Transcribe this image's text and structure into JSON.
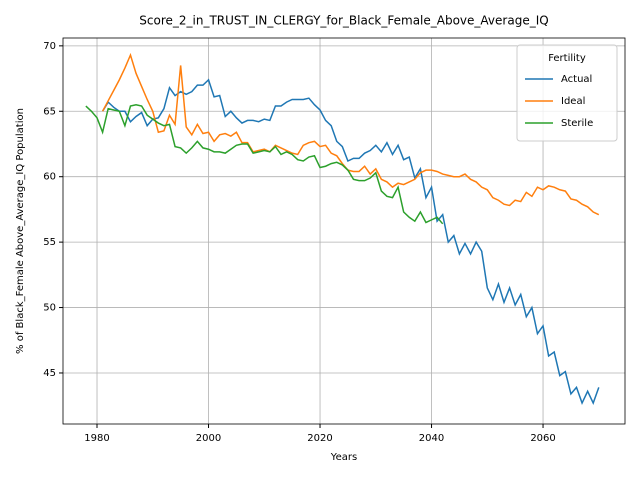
{
  "chart_data": {
    "type": "line",
    "title": "Score_2_in_TRUST_IN_CLERGY_for_Black_Female_Above_Average_IQ",
    "xlabel": "Years",
    "ylabel": "% of Black_Female Above_Average_IQ Population",
    "x": [
      1978,
      1979,
      1980,
      1981,
      1982,
      1983,
      1984,
      1985,
      1986,
      1987,
      1988,
      1989,
      1990,
      1991,
      1992,
      1993,
      1994,
      1995,
      1996,
      1997,
      1998,
      1999,
      2000,
      2001,
      2002,
      2003,
      2004,
      2005,
      2006,
      2007,
      2008,
      2009,
      2010,
      2011,
      2012,
      2013,
      2014,
      2015,
      2016,
      2017,
      2018,
      2019,
      2020,
      2021,
      2022,
      2023,
      2024,
      2025,
      2026,
      2027,
      2028,
      2029,
      2030,
      2031,
      2032,
      2033,
      2034,
      2035,
      2036,
      2037,
      2038,
      2039,
      2040,
      2041,
      2042,
      2043,
      2044,
      2045,
      2046,
      2047,
      2048,
      2049,
      2050,
      2051,
      2052,
      2053,
      2054,
      2055,
      2056,
      2057,
      2058,
      2059,
      2060,
      2061,
      2062,
      2063,
      2064,
      2065,
      2066,
      2067,
      2068,
      2069,
      2070
    ],
    "series": [
      {
        "name": "Actual",
        "color": "#1f77b4",
        "values": [
          null,
          null,
          null,
          65.0,
          65.7,
          65.3,
          65.0,
          65.0,
          64.2,
          64.6,
          64.9,
          63.9,
          64.4,
          64.5,
          65.2,
          66.8,
          66.2,
          66.5,
          66.3,
          66.5,
          67.0,
          67.0,
          67.4,
          66.1,
          66.2,
          64.6,
          65.0,
          64.5,
          64.1,
          64.3,
          64.3,
          64.2,
          64.4,
          64.3,
          65.4,
          65.4,
          65.7,
          65.9,
          65.9,
          65.9,
          66.0,
          65.5,
          65.1,
          64.3,
          63.9,
          62.7,
          62.3,
          61.2,
          61.4,
          61.4,
          61.8,
          62.0,
          62.4,
          61.9,
          62.6,
          61.7,
          62.4,
          61.3,
          61.5,
          59.9,
          60.6,
          58.4,
          59.2,
          56.6,
          57.1,
          55.0,
          55.5,
          54.1,
          54.9,
          54.1,
          55.0,
          54.3,
          51.5,
          50.6,
          51.8,
          50.4,
          51.5,
          50.2,
          51.0,
          49.3,
          50.0,
          48.0,
          48.6,
          46.3,
          46.6,
          44.8,
          45.1,
          43.4,
          43.9,
          42.7,
          43.6,
          42.7,
          43.9
        ]
      },
      {
        "name": "Ideal",
        "color": "#ff7f0e",
        "values": [
          null,
          null,
          null,
          65.0,
          65.8,
          66.6,
          67.4,
          68.3,
          69.3,
          67.9,
          66.9,
          65.9,
          65.0,
          63.4,
          63.5,
          64.7,
          64.0,
          68.5,
          63.8,
          63.2,
          64.0,
          63.3,
          63.4,
          62.7,
          63.2,
          63.3,
          63.1,
          63.4,
          62.6,
          62.6,
          61.9,
          62.0,
          62.1,
          61.9,
          62.4,
          62.2,
          62.0,
          61.8,
          61.7,
          62.4,
          62.6,
          62.7,
          62.3,
          62.4,
          61.8,
          61.6,
          61.0,
          60.5,
          60.4,
          60.4,
          60.8,
          60.2,
          60.6,
          59.8,
          59.6,
          59.2,
          59.5,
          59.4,
          59.6,
          59.8,
          60.3,
          60.5,
          60.5,
          60.4,
          60.2,
          60.1,
          60.0,
          60.0,
          60.2,
          59.8,
          59.6,
          59.2,
          59.0,
          58.4,
          58.2,
          57.9,
          57.8,
          58.2,
          58.1,
          58.8,
          58.5,
          59.2,
          59.0,
          59.3,
          59.2,
          59.0,
          58.9,
          58.3,
          58.2,
          57.9,
          57.7,
          57.3,
          57.1
        ]
      },
      {
        "name": "Sterile",
        "color": "#2ca02c",
        "values": [
          65.4,
          65.0,
          64.5,
          63.4,
          65.2,
          65.1,
          65.0,
          63.9,
          65.4,
          65.5,
          65.4,
          64.7,
          64.4,
          64.1,
          63.9,
          64.0,
          62.3,
          62.2,
          61.8,
          62.2,
          62.7,
          62.2,
          62.1,
          61.9,
          61.9,
          61.8,
          62.1,
          62.4,
          62.5,
          62.5,
          61.8,
          61.9,
          62.0,
          61.9,
          62.3,
          61.7,
          61.9,
          61.7,
          61.3,
          61.2,
          61.5,
          61.6,
          60.7,
          60.8,
          61.0,
          61.1,
          60.9,
          60.5,
          59.8,
          59.7,
          59.7,
          59.9,
          60.3,
          58.9,
          58.5,
          58.4,
          59.2,
          57.3,
          56.9,
          56.6,
          57.3,
          56.5,
          56.7,
          56.9,
          56.4,
          null,
          null,
          null,
          null,
          null,
          null,
          null,
          null,
          null,
          null,
          null,
          null,
          null,
          null,
          null,
          null,
          null,
          null,
          null,
          null,
          null,
          null,
          null,
          null,
          null,
          null,
          null,
          null
        ]
      }
    ],
    "xlim": [
      1973.9,
      2074.7
    ],
    "xticks": [
      1980,
      2000,
      2020,
      2040,
      2060
    ],
    "ylim": [
      41.1,
      70.6
    ],
    "yticks": [
      45,
      50,
      55,
      60,
      65,
      70
    ],
    "grid": true,
    "legend_title": "Fertility",
    "legend": "upper right"
  }
}
